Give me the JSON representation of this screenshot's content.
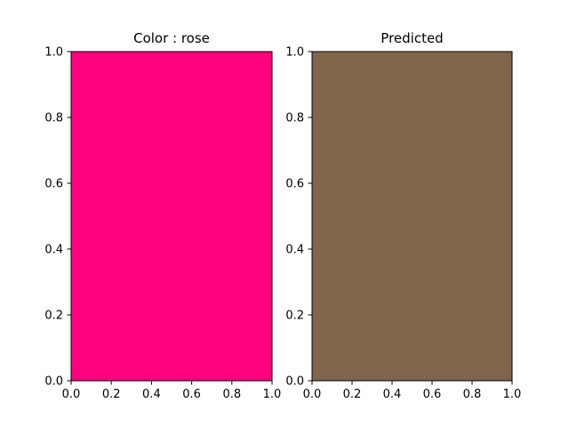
{
  "chart_data": [
    {
      "type": "heatmap",
      "title": "Color : rose",
      "fill_color": "#ff007f",
      "xlim": [
        0,
        1
      ],
      "ylim": [
        0,
        1
      ],
      "x_ticks": [
        "0.0",
        "0.2",
        "0.4",
        "0.6",
        "0.8",
        "1.0"
      ],
      "y_ticks": [
        "0.0",
        "0.2",
        "0.4",
        "0.6",
        "0.8",
        "1.0"
      ],
      "grid": false
    },
    {
      "type": "heatmap",
      "title": "Predicted",
      "fill_color": "#7f654b",
      "xlim": [
        0,
        1
      ],
      "ylim": [
        0,
        1
      ],
      "x_ticks": [
        "0.0",
        "0.2",
        "0.4",
        "0.6",
        "0.8",
        "1.0"
      ],
      "y_ticks": [
        "0.0",
        "0.2",
        "0.4",
        "0.6",
        "0.8",
        "1.0"
      ],
      "grid": false
    }
  ]
}
